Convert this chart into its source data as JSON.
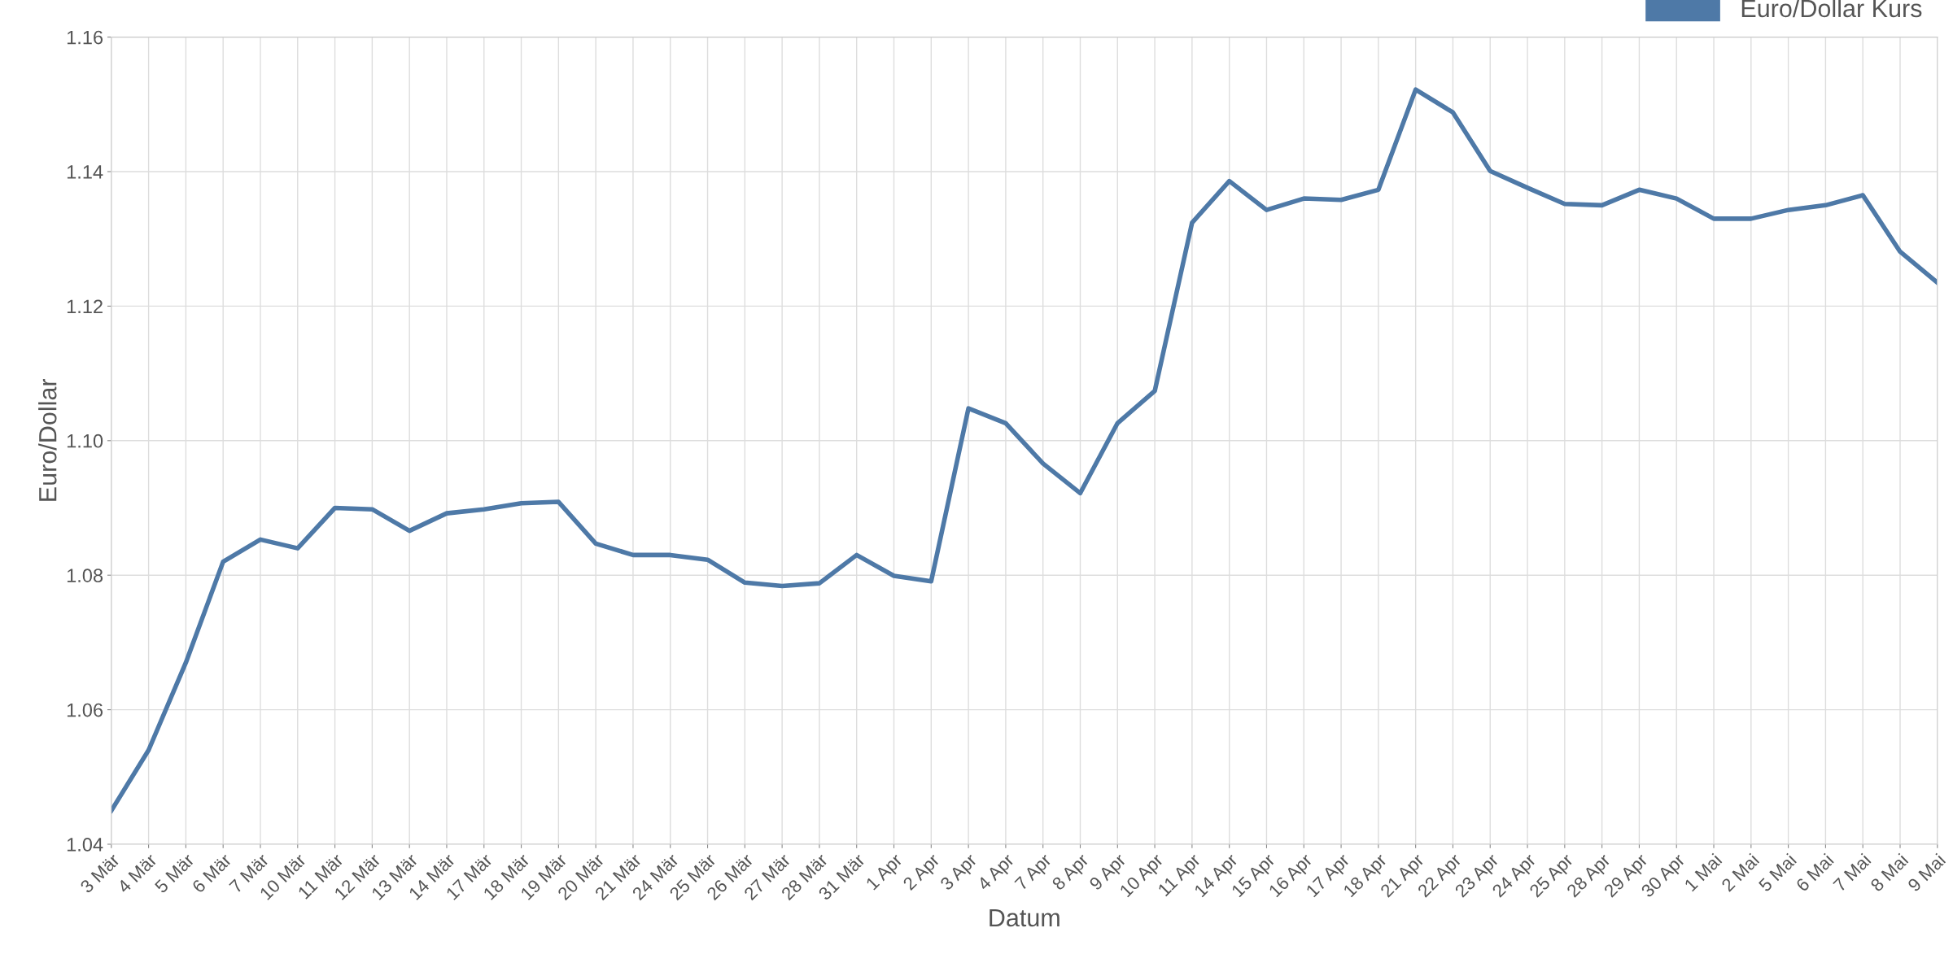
{
  "chart_data": {
    "type": "line",
    "xlabel": "Datum",
    "ylabel": "Euro/Dollar",
    "categories": [
      "3 Mär",
      "4 Mär",
      "5 Mär",
      "6 Mär",
      "7 Mär",
      "10 Mär",
      "11 Mär",
      "12 Mär",
      "13 Mär",
      "14 Mär",
      "17 Mär",
      "18 Mär",
      "19 Mär",
      "20 Mär",
      "21 Mär",
      "24 Mär",
      "25 Mär",
      "26 Mär",
      "27 Mär",
      "28 Mär",
      "31 Mär",
      "1 Apr",
      "2 Apr",
      "3 Apr",
      "4 Apr",
      "7 Apr",
      "8 Apr",
      "9 Apr",
      "10 Apr",
      "11 Apr",
      "14 Apr",
      "15 Apr",
      "16 Apr",
      "17 Apr",
      "18 Apr",
      "21 Apr",
      "22 Apr",
      "23 Apr",
      "24 Apr",
      "25 Apr",
      "28 Apr",
      "29 Apr",
      "30 Apr",
      "1 Mai",
      "2 Mai",
      "5 Mai",
      "6 Mai",
      "7 Mai",
      "8 Mai",
      "9 Mai"
    ],
    "series": [
      {
        "name": "Euro/Dollar Kurs",
        "color": "#4e79a7",
        "values": [
          1.045,
          1.054,
          1.067,
          1.082,
          1.0853,
          1.084,
          1.09,
          1.0898,
          1.0866,
          1.0892,
          1.0898,
          1.0907,
          1.0909,
          1.0847,
          1.083,
          1.083,
          1.0823,
          1.0789,
          1.0784,
          1.0788,
          1.083,
          1.0799,
          1.0791,
          1.1048,
          1.1026,
          1.0966,
          1.0922,
          1.1026,
          1.1074,
          1.1324,
          1.1386,
          1.1343,
          1.136,
          1.1358,
          1.1373,
          1.1522,
          1.1488,
          1.1401,
          1.1376,
          1.1352,
          1.135,
          1.1373,
          1.136,
          1.133,
          1.133,
          1.1343,
          1.135,
          1.1365,
          1.1281,
          1.1235
        ]
      }
    ],
    "ylim": [
      1.04,
      1.16
    ],
    "yticks": [
      {
        "value": 1.04,
        "label": "1.04"
      },
      {
        "value": 1.06,
        "label": "1.06"
      },
      {
        "value": 1.08,
        "label": "1.08"
      },
      {
        "value": 1.1,
        "label": "1.10"
      },
      {
        "value": 1.12,
        "label": "1.12"
      },
      {
        "value": 1.14,
        "label": "1.14"
      },
      {
        "value": 1.16,
        "label": "1.16"
      }
    ],
    "grid": true,
    "legend": "top right",
    "marker": "none",
    "line_style": "solid"
  }
}
